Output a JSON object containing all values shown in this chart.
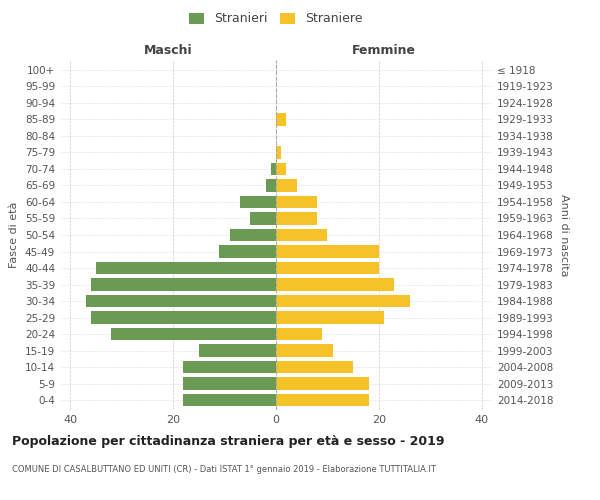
{
  "age_groups": [
    "0-4",
    "5-9",
    "10-14",
    "15-19",
    "20-24",
    "25-29",
    "30-34",
    "35-39",
    "40-44",
    "45-49",
    "50-54",
    "55-59",
    "60-64",
    "65-69",
    "70-74",
    "75-79",
    "80-84",
    "85-89",
    "90-94",
    "95-99",
    "100+"
  ],
  "birth_years": [
    "2014-2018",
    "2009-2013",
    "2004-2008",
    "1999-2003",
    "1994-1998",
    "1989-1993",
    "1984-1988",
    "1979-1983",
    "1974-1978",
    "1969-1973",
    "1964-1968",
    "1959-1963",
    "1954-1958",
    "1949-1953",
    "1944-1948",
    "1939-1943",
    "1934-1938",
    "1929-1933",
    "1924-1928",
    "1919-1923",
    "≤ 1918"
  ],
  "maschi": [
    18,
    18,
    18,
    15,
    32,
    36,
    37,
    36,
    35,
    11,
    9,
    5,
    7,
    2,
    1,
    0,
    0,
    0,
    0,
    0,
    0
  ],
  "femmine": [
    18,
    18,
    15,
    11,
    9,
    21,
    26,
    23,
    20,
    20,
    10,
    8,
    8,
    4,
    2,
    1,
    0,
    2,
    0,
    0,
    0
  ],
  "male_color": "#6a9a54",
  "female_color": "#f5c228",
  "background_color": "#ffffff",
  "grid_color": "#cccccc",
  "title": "Popolazione per cittadinanza straniera per età e sesso - 2019",
  "subtitle": "COMUNE DI CASALBUTTANO ED UNITI (CR) - Dati ISTAT 1° gennaio 2019 - Elaborazione TUTTITALIA.IT",
  "legend_stranieri": "Stranieri",
  "legend_straniere": "Straniere",
  "label_maschi": "Maschi",
  "label_femmine": "Femmine",
  "label_fasce": "Fasce di età",
  "label_anni": "Anni di nascita",
  "xlim": 42
}
